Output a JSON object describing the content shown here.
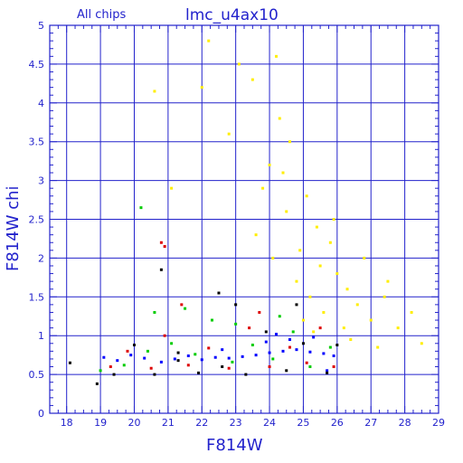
{
  "chart_data": {
    "type": "scatter",
    "title": "lmc_u4ax10",
    "subtitle": "All chips",
    "xlabel": "F814W",
    "ylabel": "F814W chi",
    "xlim": [
      17.5,
      29
    ],
    "ylim": [
      0,
      5
    ],
    "x_ticks": [
      "18",
      "19",
      "20",
      "21",
      "22",
      "23",
      "24",
      "25",
      "26",
      "27",
      "28",
      "29"
    ],
    "y_ticks": [
      "0",
      "0.5",
      "1",
      "1.5",
      "2",
      "2.5",
      "3",
      "3.5",
      "4",
      "4.5",
      "5"
    ],
    "grid": true,
    "colors": {
      "axes": "#2222cc",
      "grid": "#2222cc",
      "text": "#2222cc",
      "series": [
        "#0000ff",
        "#00cc00",
        "#dd0000",
        "#000000",
        "#ffee00"
      ]
    },
    "series": [
      {
        "color": "#0000ff",
        "points": [
          [
            19.1,
            0.72
          ],
          [
            19.5,
            0.68
          ],
          [
            19.9,
            0.75
          ],
          [
            20.3,
            0.71
          ],
          [
            20.8,
            0.66
          ],
          [
            21.2,
            0.7
          ],
          [
            21.6,
            0.74
          ],
          [
            22.0,
            0.69
          ],
          [
            22.4,
            0.72
          ],
          [
            22.8,
            0.71
          ],
          [
            23.2,
            0.73
          ],
          [
            23.6,
            0.75
          ],
          [
            24.0,
            0.78
          ],
          [
            24.4,
            0.8
          ],
          [
            24.8,
            0.82
          ],
          [
            25.2,
            0.79
          ],
          [
            25.6,
            0.77
          ],
          [
            25.9,
            0.74
          ],
          [
            23.9,
            0.92
          ],
          [
            24.6,
            0.95
          ],
          [
            25.3,
            0.98
          ],
          [
            22.6,
            0.82
          ],
          [
            24.2,
            1.02
          ],
          [
            25.7,
            0.55
          ]
        ]
      },
      {
        "color": "#00cc00",
        "points": [
          [
            19.0,
            0.55
          ],
          [
            19.7,
            0.62
          ],
          [
            20.4,
            0.8
          ],
          [
            21.1,
            0.9
          ],
          [
            21.8,
            0.76
          ],
          [
            22.3,
            1.2
          ],
          [
            22.9,
            0.66
          ],
          [
            23.5,
            0.88
          ],
          [
            24.1,
            0.7
          ],
          [
            24.7,
            1.05
          ],
          [
            25.2,
            0.6
          ],
          [
            25.8,
            0.85
          ],
          [
            20.6,
            1.3
          ],
          [
            21.5,
            1.35
          ],
          [
            23.0,
            1.15
          ],
          [
            24.3,
            1.25
          ],
          [
            20.2,
            2.65
          ]
        ]
      },
      {
        "color": "#dd0000",
        "points": [
          [
            19.3,
            0.6
          ],
          [
            19.8,
            0.8
          ],
          [
            20.5,
            0.58
          ],
          [
            20.9,
            1.0
          ],
          [
            21.6,
            0.62
          ],
          [
            22.2,
            0.84
          ],
          [
            22.8,
            0.58
          ],
          [
            23.4,
            1.1
          ],
          [
            24.0,
            0.6
          ],
          [
            24.6,
            0.85
          ],
          [
            25.1,
            0.65
          ],
          [
            25.9,
            0.6
          ],
          [
            20.9,
            2.15
          ],
          [
            20.8,
            2.2
          ],
          [
            21.4,
            1.4
          ],
          [
            23.7,
            1.3
          ],
          [
            25.5,
            1.1
          ]
        ]
      },
      {
        "color": "#000000",
        "points": [
          [
            18.1,
            0.65
          ],
          [
            18.9,
            0.38
          ],
          [
            19.4,
            0.5
          ],
          [
            20.0,
            0.88
          ],
          [
            20.6,
            0.5
          ],
          [
            21.3,
            0.78
          ],
          [
            21.9,
            0.52
          ],
          [
            22.6,
            0.6
          ],
          [
            23.3,
            0.5
          ],
          [
            23.9,
            1.05
          ],
          [
            24.5,
            0.55
          ],
          [
            25.0,
            0.9
          ],
          [
            25.7,
            0.52
          ],
          [
            20.8,
            1.85
          ],
          [
            22.5,
            1.55
          ],
          [
            24.8,
            1.4
          ],
          [
            21.3,
            0.68
          ],
          [
            26.0,
            0.88
          ],
          [
            23.0,
            1.4
          ]
        ]
      },
      {
        "color": "#ffee00",
        "points": [
          [
            23.1,
            4.5
          ],
          [
            23.5,
            4.3
          ],
          [
            24.2,
            4.6
          ],
          [
            24.6,
            3.5
          ],
          [
            24.3,
            3.8
          ],
          [
            24.0,
            3.2
          ],
          [
            23.8,
            2.9
          ],
          [
            24.5,
            2.6
          ],
          [
            25.1,
            2.8
          ],
          [
            25.4,
            2.4
          ],
          [
            25.8,
            2.2
          ],
          [
            24.9,
            2.1
          ],
          [
            25.5,
            1.9
          ],
          [
            26.0,
            1.8
          ],
          [
            26.3,
            1.6
          ],
          [
            26.6,
            1.4
          ],
          [
            27.0,
            1.2
          ],
          [
            27.4,
            1.5
          ],
          [
            27.8,
            1.1
          ],
          [
            28.2,
            1.3
          ],
          [
            28.5,
            0.9
          ],
          [
            25.2,
            1.5
          ],
          [
            24.8,
            1.7
          ],
          [
            25.6,
            1.3
          ],
          [
            26.2,
            1.1
          ],
          [
            22.2,
            4.8
          ],
          [
            22.0,
            4.2
          ],
          [
            20.6,
            4.15
          ],
          [
            21.1,
            2.9
          ],
          [
            22.8,
            3.6
          ],
          [
            26.8,
            2.0
          ],
          [
            27.5,
            1.7
          ],
          [
            25.9,
            2.5
          ],
          [
            24.4,
            3.1
          ],
          [
            25.0,
            1.2
          ],
          [
            23.6,
            2.3
          ],
          [
            24.1,
            2.0
          ],
          [
            26.4,
            0.95
          ],
          [
            27.2,
            0.85
          ],
          [
            25.3,
            1.05
          ]
        ]
      }
    ]
  }
}
